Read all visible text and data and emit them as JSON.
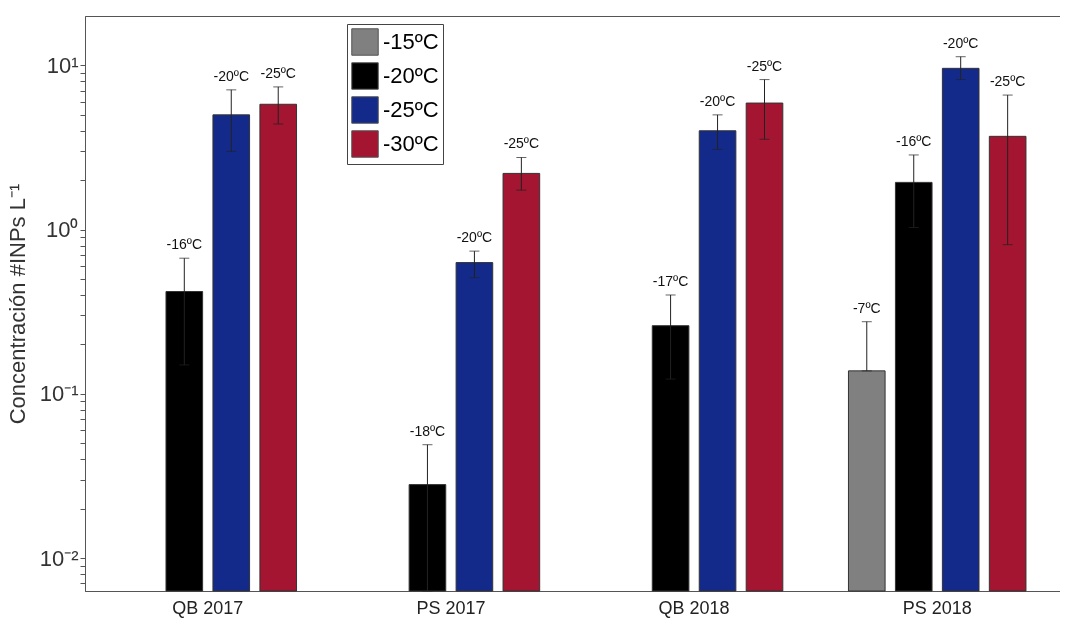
{
  "chart_data": {
    "type": "bar",
    "ylabel": "Concentración #INPs L⁻¹",
    "categories": [
      "QB 2017",
      "PS 2017",
      "QB 2018",
      "PS 2018"
    ],
    "series": [
      {
        "name": "-15ºC",
        "color": "#808080",
        "values": [
          null,
          null,
          null,
          0.138
        ],
        "errors": [
          null,
          null,
          null,
          [
            0.138,
            0.275
          ]
        ]
      },
      {
        "name": "-20ºC",
        "color": "#000000",
        "values": [
          0.42,
          0.028,
          0.26,
          1.94
        ],
        "errors": [
          [
            0.15,
            0.67
          ],
          [
            0.0063,
            0.049
          ],
          [
            0.123,
            0.4
          ],
          [
            1.03,
            2.85
          ]
        ]
      },
      {
        "name": "-25ºC",
        "color": "#142a8a",
        "values": [
          5.0,
          0.63,
          4.0,
          9.6
        ],
        "errors": [
          [
            3.0,
            7.1
          ],
          [
            0.51,
            0.74
          ],
          [
            3.08,
            5.0
          ],
          [
            8.2,
            11.3
          ]
        ]
      },
      {
        "name": "-30ºC",
        "color": "#a31530",
        "values": [
          5.8,
          2.2,
          5.9,
          3.7
        ],
        "errors": [
          [
            4.4,
            7.4
          ],
          [
            1.74,
            2.75
          ],
          [
            3.55,
            8.2
          ],
          [
            0.81,
            6.6
          ]
        ]
      }
    ],
    "log": true,
    "ylim": [
      0.0063,
      20
    ],
    "yticks": [
      {
        "value": 0.007,
        "label": null
      },
      {
        "value": 0.008,
        "label": null
      },
      {
        "value": 0.009,
        "label": null
      },
      {
        "value": 0.01,
        "label": "10⁻²"
      },
      {
        "value": 0.02,
        "label": null
      },
      {
        "value": 0.03,
        "label": null
      },
      {
        "value": 0.04,
        "label": null
      },
      {
        "value": 0.05,
        "label": null
      },
      {
        "value": 0.06,
        "label": null
      },
      {
        "value": 0.07,
        "label": null
      },
      {
        "value": 0.08,
        "label": null
      },
      {
        "value": 0.09,
        "label": null
      },
      {
        "value": 0.1,
        "label": "10⁻¹"
      },
      {
        "value": 0.2,
        "label": null
      },
      {
        "value": 0.3,
        "label": null
      },
      {
        "value": 0.4,
        "label": null
      },
      {
        "value": 0.5,
        "label": null
      },
      {
        "value": 0.6,
        "label": null
      },
      {
        "value": 0.7,
        "label": null
      },
      {
        "value": 0.8,
        "label": null
      },
      {
        "value": 0.9,
        "label": null
      },
      {
        "value": 1,
        "label": "10⁰"
      },
      {
        "value": 2,
        "label": null
      },
      {
        "value": 3,
        "label": null
      },
      {
        "value": 4,
        "label": null
      },
      {
        "value": 5,
        "label": null
      },
      {
        "value": 6,
        "label": null
      },
      {
        "value": 7,
        "label": null
      },
      {
        "value": 8,
        "label": null
      },
      {
        "value": 9,
        "label": null
      },
      {
        "value": 10,
        "label": "10¹"
      }
    ],
    "grid": false,
    "legend": "top left",
    "annotations": [
      "-16ºC",
      "-20ºC",
      "-25ºC",
      "-18ºC",
      "-20ºC",
      "-25ºC",
      "-17ºC",
      "-20ºC",
      "-25ºC",
      "-7ºC",
      "-16ºC",
      "-20ºC",
      "-25ºC"
    ]
  }
}
